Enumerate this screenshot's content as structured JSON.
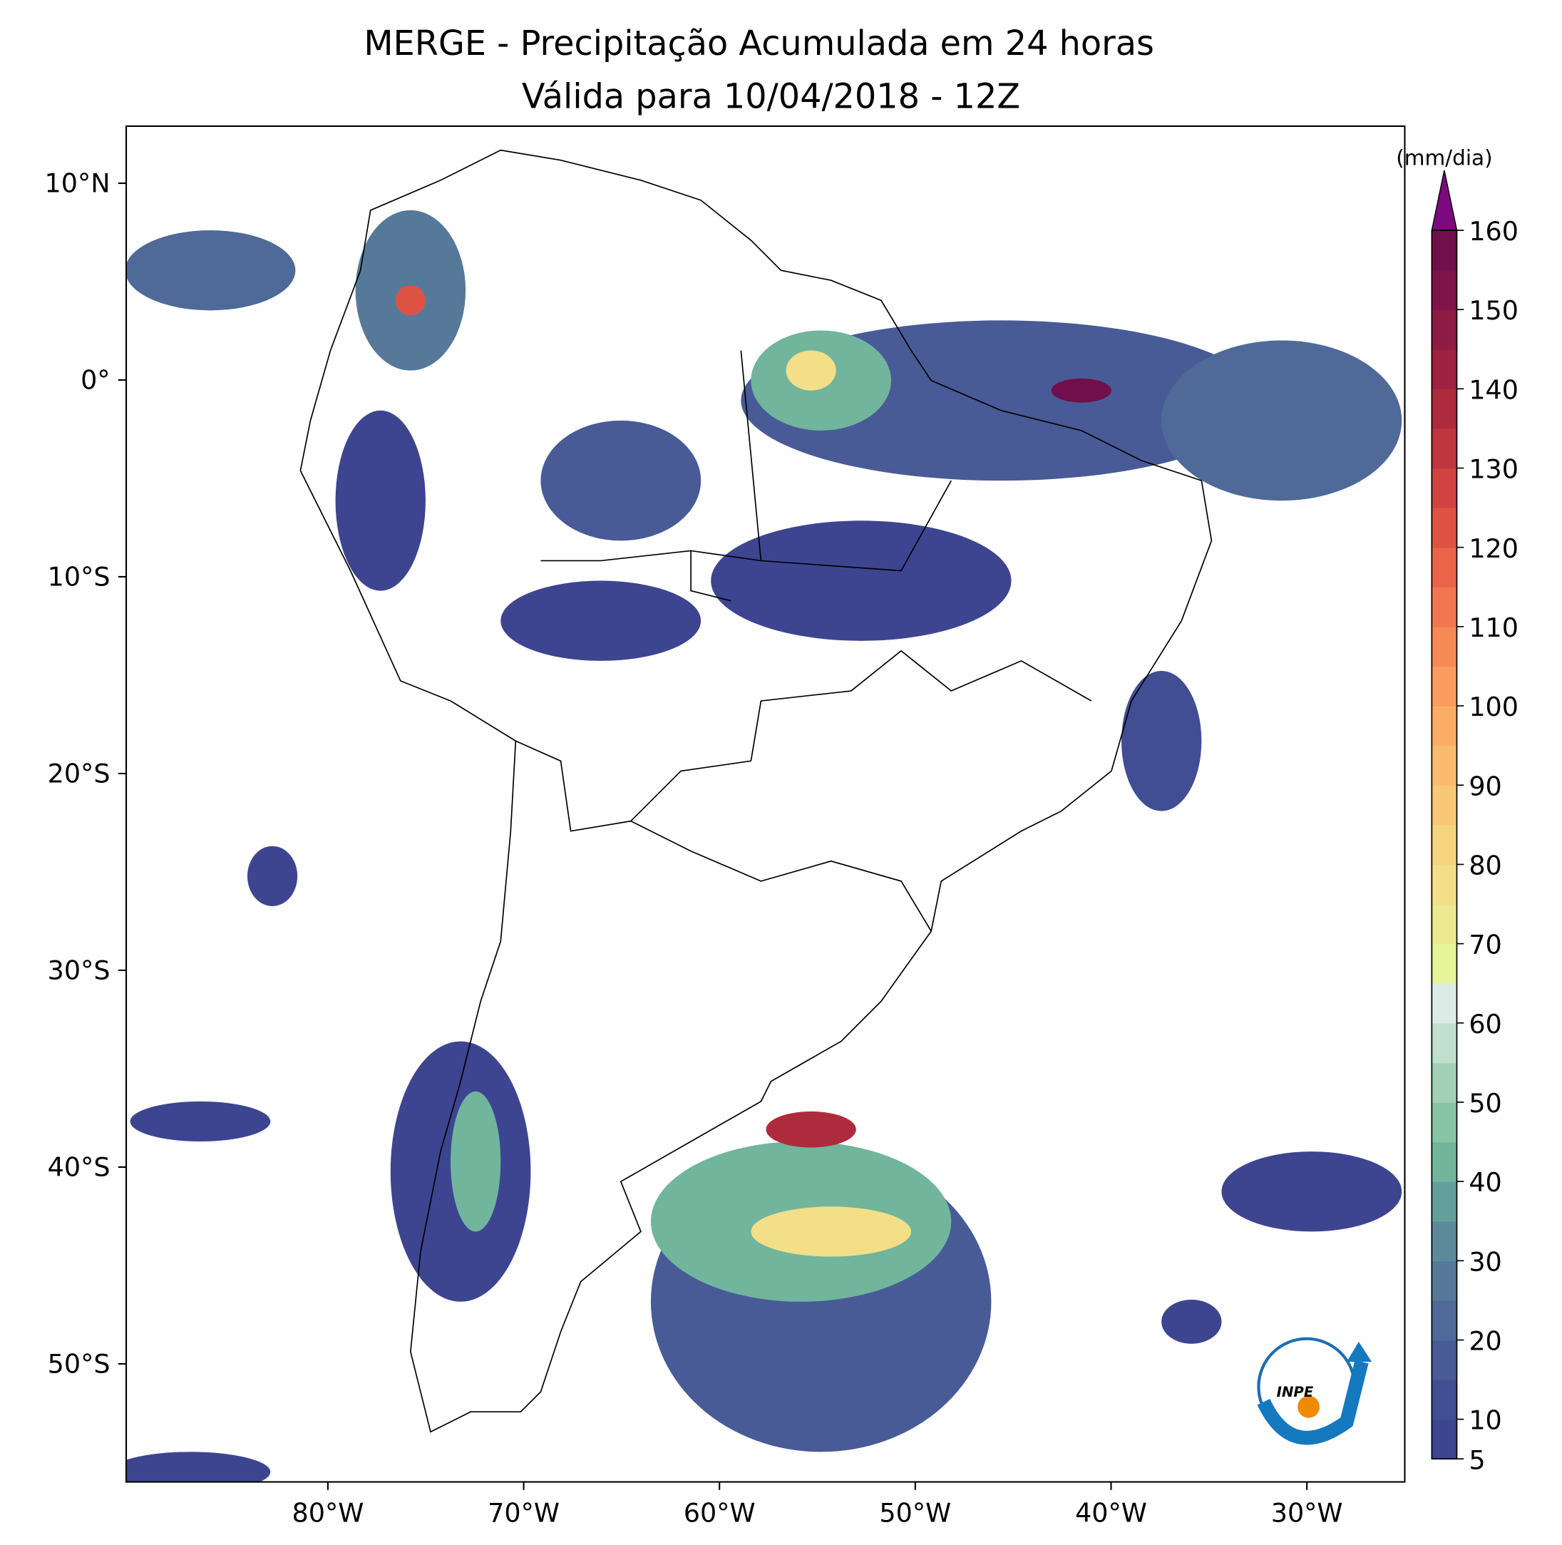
{
  "title": [
    "MERGE - Precipitação Acumulada em 24 horas",
    "Válida para 10/04/2018 - 12Z"
  ],
  "map": {
    "type": "map",
    "xlim": [
      -90.3,
      -25
    ],
    "ylim": [
      -56,
      12.9
    ],
    "xticks": [
      {
        "value": -80,
        "label": "80°W"
      },
      {
        "value": -70,
        "label": "70°W"
      },
      {
        "value": -60,
        "label": "60°W"
      },
      {
        "value": -50,
        "label": "50°W"
      },
      {
        "value": -40,
        "label": "40°W"
      },
      {
        "value": -30,
        "label": "30°W"
      }
    ],
    "yticks": [
      {
        "value": 10,
        "label": "10°N"
      },
      {
        "value": 0,
        "label": "0°"
      },
      {
        "value": -10,
        "label": "10°S"
      },
      {
        "value": -20,
        "label": "20°S"
      },
      {
        "value": -30,
        "label": "30°S"
      },
      {
        "value": -40,
        "label": "40°S"
      },
      {
        "value": -50,
        "label": "50°S"
      }
    ]
  },
  "colorbar": {
    "label": "(mm/dia)",
    "lim": [
      5,
      160
    ],
    "step": 5,
    "ticks": [
      5,
      10,
      20,
      30,
      40,
      50,
      60,
      70,
      80,
      90,
      100,
      110,
      120,
      130,
      140,
      150,
      160
    ],
    "colors": [
      "#3d4591",
      "#414e94",
      "#485b96",
      "#4f6a98",
      "#56799a",
      "#5c8a9a",
      "#63a09b",
      "#70b59c",
      "#87c4a5",
      "#a3d1b5",
      "#c0dfcd",
      "#dcebe6",
      "#e6f49a",
      "#ede991",
      "#f2df88",
      "#f6d47f",
      "#f9c877",
      "#fbbb6f",
      "#fbad67",
      "#f99c5e",
      "#f68a55",
      "#f1774e",
      "#e96448",
      "#de5244",
      "#d04341",
      "#c0363f",
      "#ae2b3e",
      "#9e2240",
      "#8e1b44",
      "#7f1448",
      "#700f4b"
    ],
    "extend_color": "#7b0a7e"
  },
  "logo": "INPE"
}
